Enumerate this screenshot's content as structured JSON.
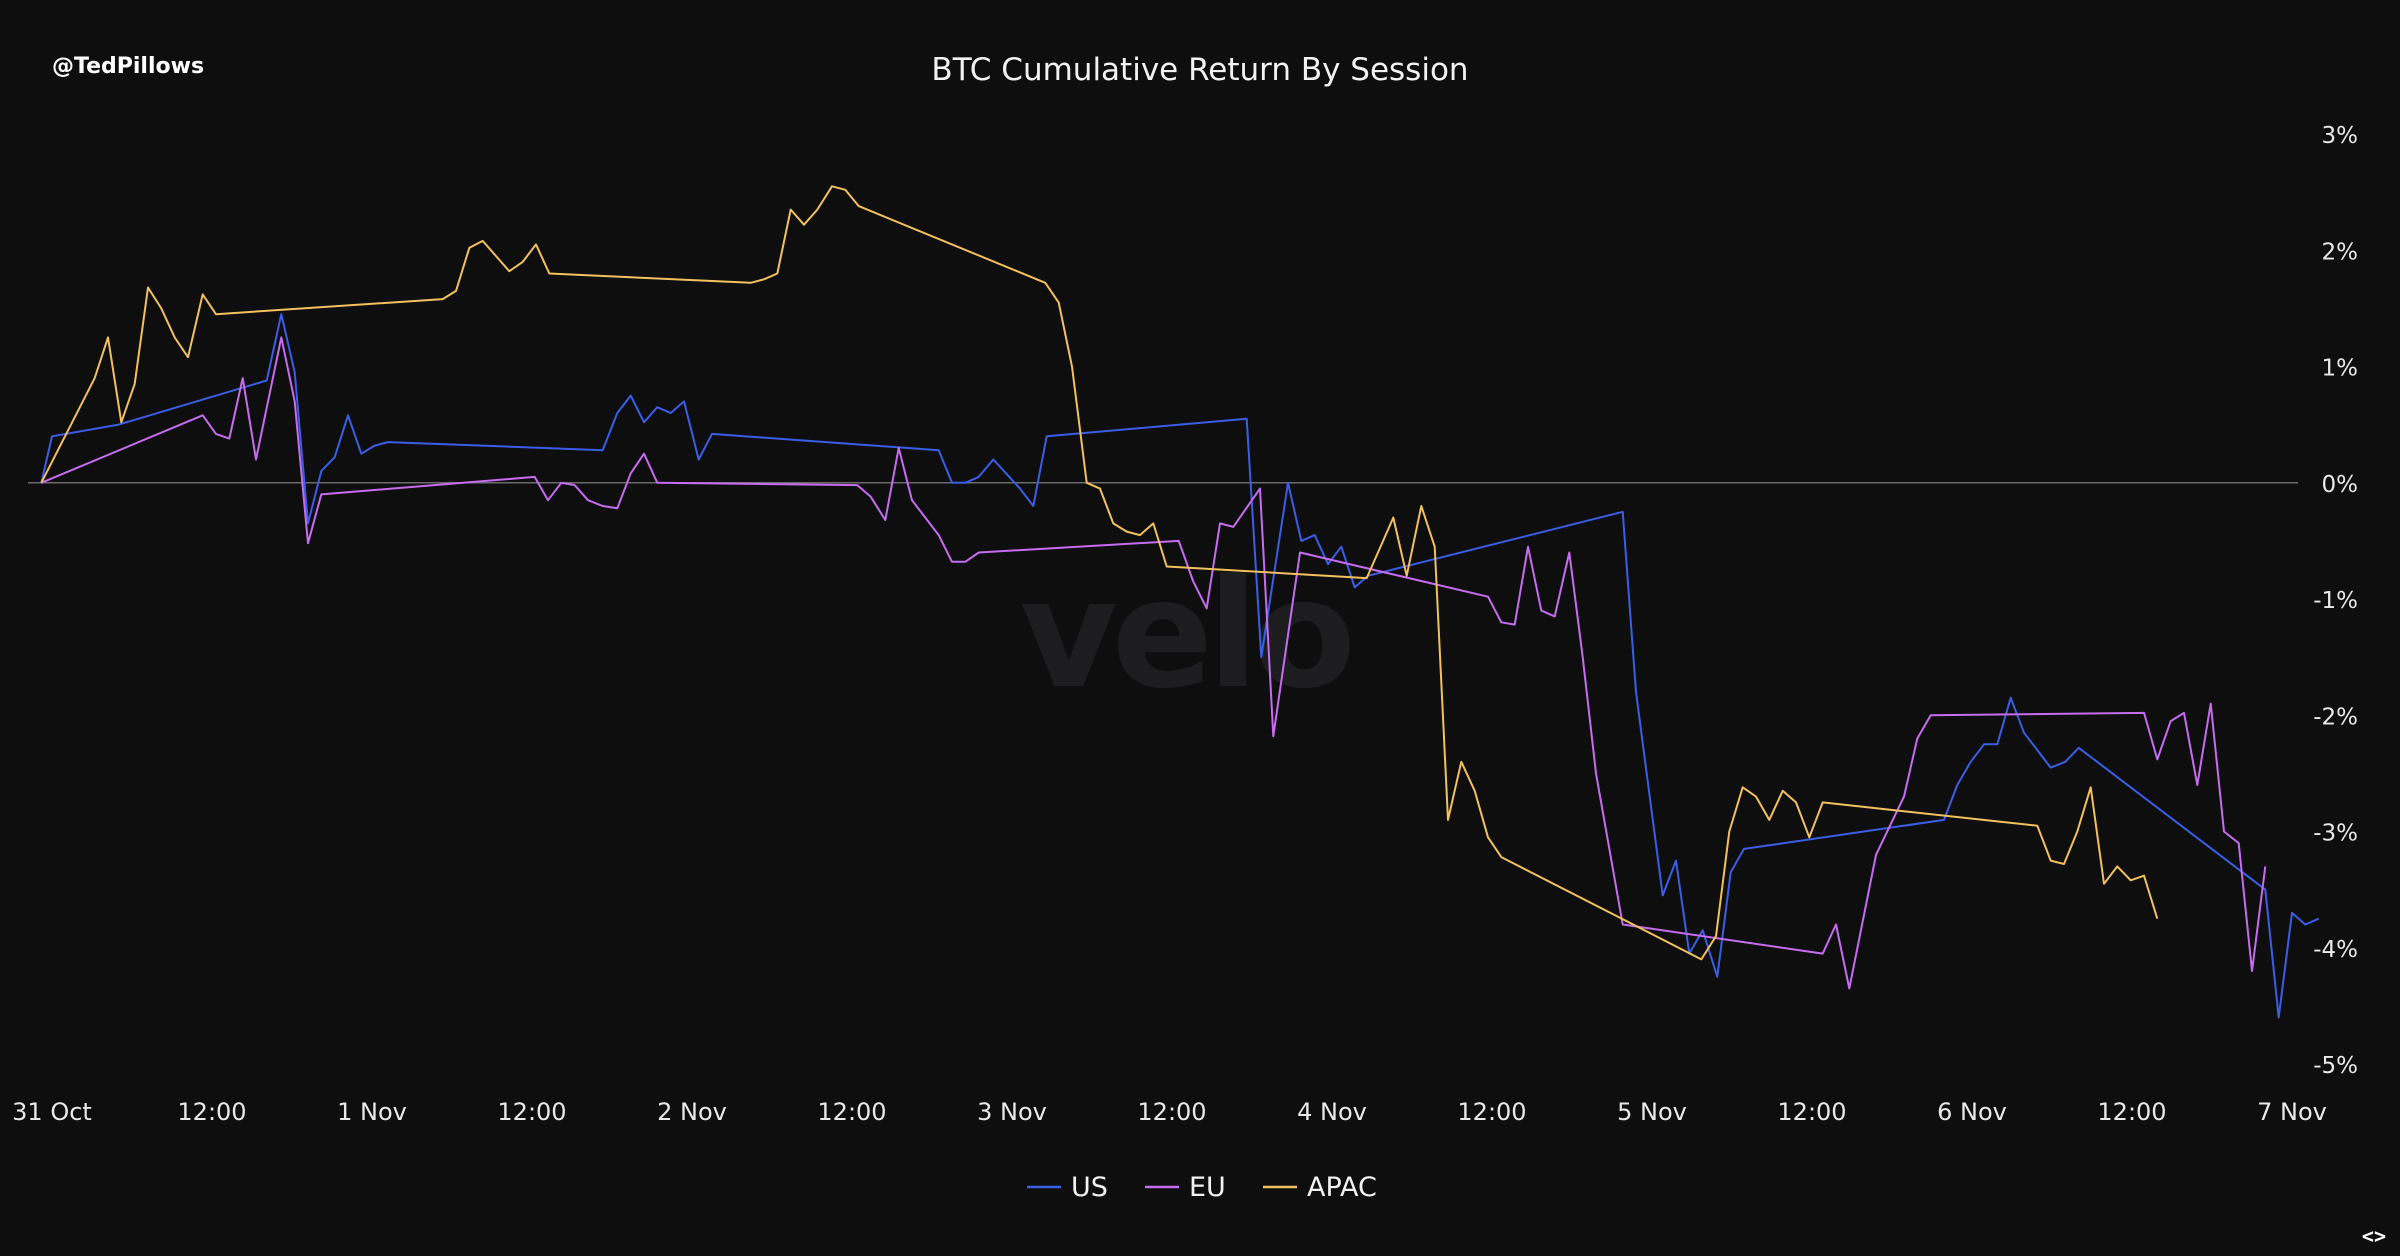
{
  "header": {
    "handle": "@TedPillows",
    "title": "BTC Cumulative Return By Session"
  },
  "watermark": "velo",
  "footer": {
    "nav_prev": "<",
    "nav_next": ">"
  },
  "colors": {
    "background": "#0e0e0f",
    "zero_line": "#6a6a6a",
    "US": "#3b5ee6",
    "EU": "#c66cf0",
    "APAC": "#f2c15e"
  },
  "chart_data": {
    "type": "line",
    "title": "BTC Cumulative Return By Session",
    "xlabel": "",
    "ylabel": "",
    "x_unit": "hours since 31 Oct 00:00",
    "xlim": [
      0,
      168
    ],
    "ylim": [
      -5,
      3
    ],
    "x_ticks": [
      {
        "x": 0,
        "label": "31 Oct"
      },
      {
        "x": 12,
        "label": "12:00"
      },
      {
        "x": 24,
        "label": "1 Nov"
      },
      {
        "x": 36,
        "label": "12:00"
      },
      {
        "x": 48,
        "label": "2 Nov"
      },
      {
        "x": 60,
        "label": "12:00"
      },
      {
        "x": 72,
        "label": "3 Nov"
      },
      {
        "x": 84,
        "label": "12:00"
      },
      {
        "x": 96,
        "label": "4 Nov"
      },
      {
        "x": 108,
        "label": "12:00"
      },
      {
        "x": 120,
        "label": "5 Nov"
      },
      {
        "x": 132,
        "label": "12:00"
      },
      {
        "x": 144,
        "label": "6 Nov"
      },
      {
        "x": 156,
        "label": "12:00"
      },
      {
        "x": 168,
        "label": "7 Nov"
      }
    ],
    "y_ticks": [
      {
        "y": 3,
        "label": "3%"
      },
      {
        "y": 2,
        "label": "2%"
      },
      {
        "y": 1,
        "label": "1%"
      },
      {
        "y": 0,
        "label": "0%"
      },
      {
        "y": -1,
        "label": "-1%"
      },
      {
        "y": -2,
        "label": "-2%"
      },
      {
        "y": -3,
        "label": "-3%"
      },
      {
        "y": -4,
        "label": "-4%"
      },
      {
        "y": -5,
        "label": "-5%"
      }
    ],
    "zero_line": true,
    "grid": false,
    "legend_position": "bottom-center",
    "series": [
      {
        "name": "US",
        "color": "#3b5ee6",
        "points": [
          [
            -0.8,
            0.0
          ],
          [
            0.0,
            0.4
          ],
          [
            5,
            0.5
          ],
          [
            16.1,
            0.88
          ],
          [
            17.2,
            1.45
          ],
          [
            18.2,
            0.95
          ],
          [
            19.2,
            -0.35
          ],
          [
            20.2,
            0.1
          ],
          [
            21.2,
            0.22
          ],
          [
            22.2,
            0.58
          ],
          [
            23.2,
            0.25
          ],
          [
            24.2,
            0.32
          ],
          [
            25.2,
            0.35
          ],
          [
            41.3,
            0.28
          ],
          [
            42.4,
            0.6
          ],
          [
            43.4,
            0.75
          ],
          [
            44.4,
            0.52
          ],
          [
            45.4,
            0.65
          ],
          [
            46.4,
            0.6
          ],
          [
            47.4,
            0.7
          ],
          [
            48.5,
            0.2
          ],
          [
            49.5,
            0.42
          ],
          [
            66.5,
            0.28
          ],
          [
            67.5,
            0.0
          ],
          [
            68.5,
            0.0
          ],
          [
            69.5,
            0.05
          ],
          [
            70.6,
            0.2
          ],
          [
            72.6,
            -0.05
          ],
          [
            73.6,
            -0.2
          ],
          [
            74.6,
            0.4
          ],
          [
            89.6,
            0.55
          ],
          [
            90.7,
            -1.5
          ],
          [
            92.7,
            0.0
          ],
          [
            93.7,
            -0.5
          ],
          [
            94.7,
            -0.45
          ],
          [
            95.7,
            -0.7
          ],
          [
            96.7,
            -0.55
          ],
          [
            97.7,
            -0.9
          ],
          [
            98.7,
            -0.8
          ],
          [
            117.8,
            -0.25
          ],
          [
            118.8,
            -1.8
          ],
          [
            120.8,
            -3.55
          ],
          [
            121.8,
            -3.25
          ],
          [
            122.8,
            -4.05
          ],
          [
            123.8,
            -3.85
          ],
          [
            124.9,
            -4.25
          ],
          [
            125.9,
            -3.35
          ],
          [
            126.9,
            -3.15
          ],
          [
            141.9,
            -2.9
          ],
          [
            142.9,
            -2.6
          ],
          [
            143.9,
            -2.4
          ],
          [
            144.9,
            -2.25
          ],
          [
            145.9,
            -2.25
          ],
          [
            146.9,
            -1.85
          ],
          [
            147.9,
            -2.15
          ],
          [
            149.9,
            -2.45
          ],
          [
            151.0,
            -2.4
          ],
          [
            152.0,
            -2.28
          ],
          [
            166.0,
            -3.5
          ],
          [
            167.0,
            -4.6
          ],
          [
            168.0,
            -3.7
          ],
          [
            169.0,
            -3.8
          ],
          [
            170.0,
            -3.75
          ]
        ]
      },
      {
        "name": "EU",
        "color": "#c66cf0",
        "points": [
          [
            -0.8,
            0.0
          ],
          [
            11.3,
            0.58
          ],
          [
            12.3,
            0.42
          ],
          [
            13.3,
            0.38
          ],
          [
            14.3,
            0.9
          ],
          [
            15.3,
            0.2
          ],
          [
            17.2,
            1.25
          ],
          [
            18.2,
            0.7
          ],
          [
            19.2,
            -0.52
          ],
          [
            20.2,
            -0.1
          ],
          [
            36.2,
            0.05
          ],
          [
            37.2,
            -0.15
          ],
          [
            38.2,
            0.0
          ],
          [
            39.2,
            -0.02
          ],
          [
            40.2,
            -0.15
          ],
          [
            41.3,
            -0.2
          ],
          [
            42.4,
            -0.22
          ],
          [
            43.4,
            0.08
          ],
          [
            44.4,
            0.25
          ],
          [
            45.4,
            0.0
          ],
          [
            60.4,
            -0.02
          ],
          [
            61.4,
            -0.12
          ],
          [
            62.5,
            -0.32
          ],
          [
            63.5,
            0.3
          ],
          [
            64.5,
            -0.15
          ],
          [
            65.5,
            -0.3
          ],
          [
            66.5,
            -0.45
          ],
          [
            67.5,
            -0.68
          ],
          [
            68.5,
            -0.68
          ],
          [
            69.5,
            -0.6
          ],
          [
            84.5,
            -0.5
          ],
          [
            85.6,
            -0.85
          ],
          [
            86.6,
            -1.08
          ],
          [
            87.6,
            -0.35
          ],
          [
            88.6,
            -0.38
          ],
          [
            90.6,
            -0.05
          ],
          [
            91.6,
            -2.18
          ],
          [
            93.6,
            -0.6
          ],
          [
            107.7,
            -0.98
          ],
          [
            108.7,
            -1.2
          ],
          [
            109.7,
            -1.22
          ],
          [
            110.7,
            -0.55
          ],
          [
            111.7,
            -1.1
          ],
          [
            112.7,
            -1.15
          ],
          [
            113.8,
            -0.6
          ],
          [
            114.8,
            -1.5
          ],
          [
            115.8,
            -2.5
          ],
          [
            117.8,
            -3.8
          ],
          [
            132.8,
            -4.05
          ],
          [
            133.8,
            -3.8
          ],
          [
            134.8,
            -4.35
          ],
          [
            136.8,
            -3.2
          ],
          [
            138.9,
            -2.7
          ],
          [
            139.9,
            -2.2
          ],
          [
            140.9,
            -2.0
          ],
          [
            156.9,
            -1.98
          ],
          [
            157.9,
            -2.38
          ],
          [
            158.9,
            -2.05
          ],
          [
            159.9,
            -1.98
          ],
          [
            160.9,
            -2.6
          ],
          [
            161.9,
            -1.9
          ],
          [
            162.9,
            -3.0
          ],
          [
            164.0,
            -3.1
          ],
          [
            165.0,
            -4.2
          ],
          [
            166.0,
            -3.3
          ]
        ]
      },
      {
        "name": "APAC",
        "color": "#f2c15e",
        "points": [
          [
            -0.8,
            0.0
          ],
          [
            3.2,
            0.9
          ],
          [
            4.2,
            1.25
          ],
          [
            5.2,
            0.52
          ],
          [
            6.2,
            0.85
          ],
          [
            7.2,
            1.68
          ],
          [
            8.2,
            1.5
          ],
          [
            9.2,
            1.25
          ],
          [
            10.2,
            1.08
          ],
          [
            11.3,
            1.62
          ],
          [
            12.3,
            1.45
          ],
          [
            29.3,
            1.58
          ],
          [
            30.3,
            1.65
          ],
          [
            31.3,
            2.02
          ],
          [
            32.3,
            2.08
          ],
          [
            34.3,
            1.82
          ],
          [
            35.3,
            1.9
          ],
          [
            36.3,
            2.05
          ],
          [
            37.3,
            1.8
          ],
          [
            52.4,
            1.72
          ],
          [
            53.4,
            1.75
          ],
          [
            54.4,
            1.8
          ],
          [
            55.4,
            2.35
          ],
          [
            56.4,
            2.22
          ],
          [
            57.4,
            2.35
          ],
          [
            58.5,
            2.55
          ],
          [
            59.5,
            2.52
          ],
          [
            60.5,
            2.38
          ],
          [
            74.5,
            1.72
          ],
          [
            75.5,
            1.55
          ],
          [
            76.5,
            1.0
          ],
          [
            77.6,
            0.0
          ],
          [
            78.6,
            -0.05
          ],
          [
            79.6,
            -0.35
          ],
          [
            80.6,
            -0.42
          ],
          [
            81.6,
            -0.45
          ],
          [
            82.6,
            -0.35
          ],
          [
            83.6,
            -0.72
          ],
          [
            98.6,
            -0.82
          ],
          [
            100.6,
            -0.3
          ],
          [
            101.6,
            -0.8
          ],
          [
            102.7,
            -0.2
          ],
          [
            103.7,
            -0.55
          ],
          [
            104.7,
            -2.9
          ],
          [
            105.7,
            -2.4
          ],
          [
            106.7,
            -2.65
          ],
          [
            107.7,
            -3.05
          ],
          [
            108.7,
            -3.22
          ],
          [
            123.7,
            -4.1
          ],
          [
            124.8,
            -3.9
          ],
          [
            125.8,
            -3.0
          ],
          [
            126.8,
            -2.62
          ],
          [
            127.8,
            -2.7
          ],
          [
            128.8,
            -2.9
          ],
          [
            129.8,
            -2.65
          ],
          [
            130.8,
            -2.75
          ],
          [
            131.8,
            -3.05
          ],
          [
            132.8,
            -2.75
          ],
          [
            148.9,
            -2.95
          ],
          [
            149.9,
            -3.25
          ],
          [
            150.9,
            -3.28
          ],
          [
            151.9,
            -3.0
          ],
          [
            152.9,
            -2.62
          ],
          [
            153.9,
            -3.45
          ],
          [
            154.9,
            -3.3
          ],
          [
            155.9,
            -3.42
          ],
          [
            156.9,
            -3.38
          ],
          [
            157.9,
            -3.75
          ]
        ]
      }
    ]
  }
}
